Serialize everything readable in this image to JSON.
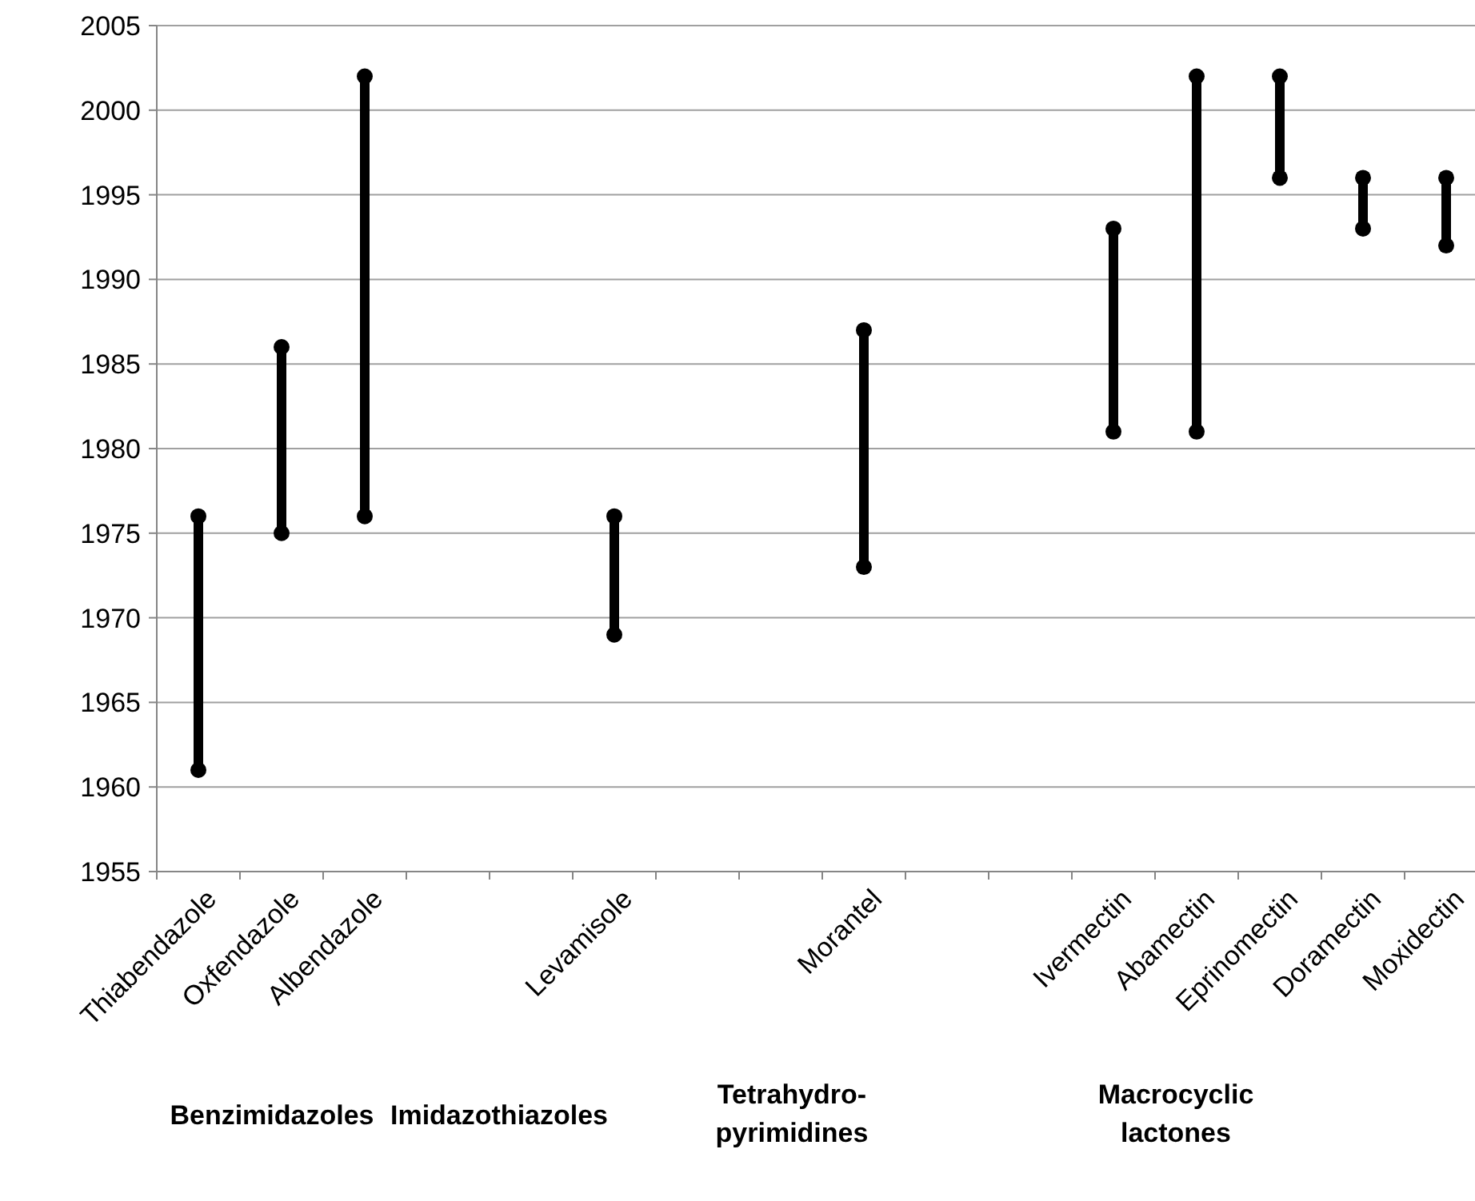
{
  "chart_data": {
    "type": "bar",
    "categories": [
      "Thiabendazole",
      "Oxfendazole",
      "Albendazole",
      null,
      null,
      "Levamisole",
      null,
      null,
      "Morantel",
      null,
      null,
      "Ivermectin",
      "Abamectin",
      "Eprinomectin",
      "Doramectin",
      "Moxidectin"
    ],
    "series": [
      {
        "color": "#000000",
        "base": [
          1961,
          1975,
          1976,
          null,
          null,
          1969,
          null,
          null,
          1973,
          null,
          null,
          1981,
          1981,
          1996,
          1993,
          1992
        ],
        "values": [
          15,
          11,
          26,
          null,
          null,
          7,
          null,
          null,
          14,
          null,
          null,
          12,
          21,
          6,
          3,
          4
        ]
      },
      {
        "type": "scatter",
        "color": "#000000",
        "values": [
          1961,
          1975,
          1976,
          null,
          null,
          1969,
          null,
          null,
          1973,
          null,
          null,
          1981,
          1981,
          1996,
          1993,
          1992
        ]
      },
      {
        "type": "scatter",
        "color": "#000000",
        "values": [
          1976,
          1986,
          2002,
          null,
          null,
          1976,
          null,
          null,
          1987,
          null,
          null,
          1993,
          2002,
          2002,
          1996,
          1996
        ]
      }
    ],
    "marker": "circle",
    "grid": "y",
    "ylim": [
      1955,
      2005
    ],
    "yticks": [
      1955,
      1960,
      1965,
      1970,
      1975,
      1980,
      1985,
      1990,
      1995,
      2000,
      2005
    ],
    "annotations": [
      "Benzimidazoles",
      "Imidazothiazoles",
      "Tetrahydro-pyrimidines",
      "Macrocyclic lactones"
    ]
  }
}
